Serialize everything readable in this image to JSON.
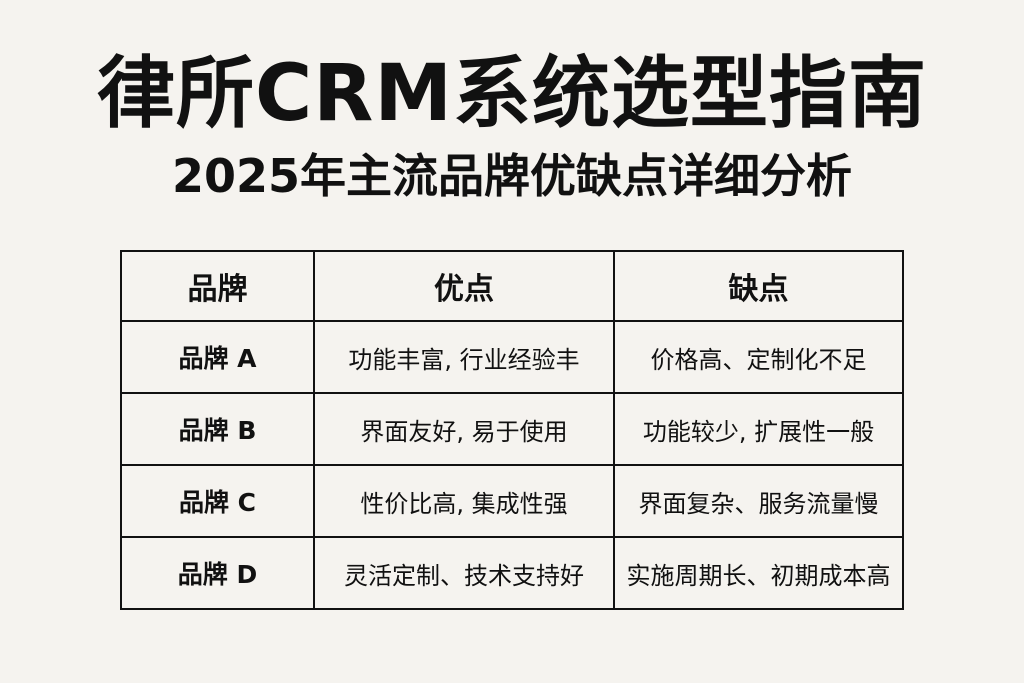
{
  "title": "律所CRM系统选型指南",
  "subtitle": "2025年主流品牌优缺点详细分析",
  "table": {
    "headers": [
      "品牌",
      "优点",
      "缺点"
    ],
    "rows": [
      {
        "brand": "品牌 A",
        "pros": "功能丰富, 行业经验丰",
        "cons": "价格高、定制化不足"
      },
      {
        "brand": "品牌 B",
        "pros": "界面友好, 易于使用",
        "cons": "功能较少, 扩展性一般"
      },
      {
        "brand": "品牌 C",
        "pros": "性价比高, 集成性强",
        "cons": "界面复杂、服务流量慢"
      },
      {
        "brand": "品牌 D",
        "pros": "灵活定制、技术支持好",
        "cons": "实施周期长、初期成本高"
      }
    ]
  },
  "colors": {
    "background": "#f5f3ef",
    "text": "#111111",
    "border": "#111111"
  }
}
